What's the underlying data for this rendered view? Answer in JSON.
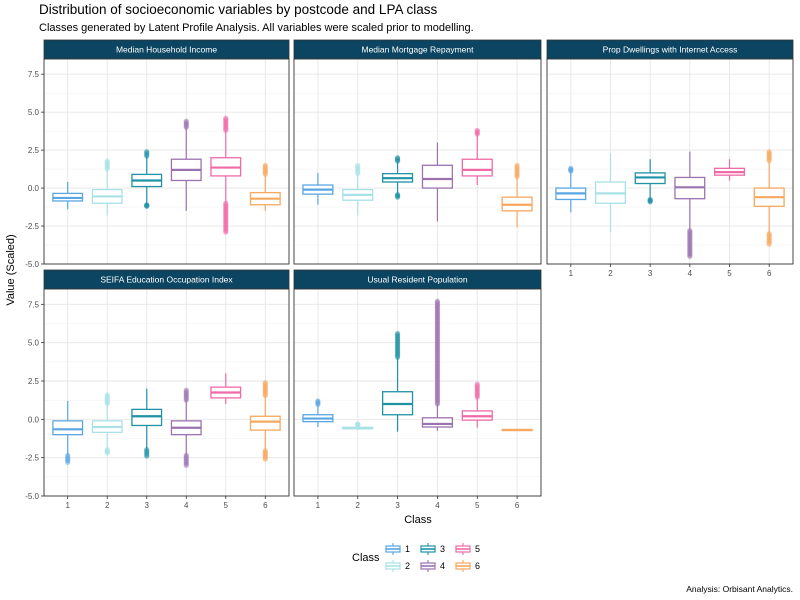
{
  "chart_data": {
    "type": "boxplot",
    "title": "Distribution of socioeconomic variables by postcode and LPA class",
    "subtitle": "Classes generated by Latent Profile Analysis. All variables were scaled prior to modelling.",
    "xlabel": "Class",
    "ylabel": "Value (Scaled)",
    "caption": "Analysis: Orbisant Analytics.",
    "categories": [
      "1",
      "2",
      "3",
      "4",
      "5",
      "6"
    ],
    "ylim": [
      -5,
      8.5
    ],
    "yticks": [
      -5.0,
      -2.5,
      0.0,
      2.5,
      5.0,
      7.5
    ],
    "ytick_labels": [
      "-5.0",
      "-2.5",
      "0.0",
      "2.5",
      "5.0",
      "7.5"
    ],
    "grid": true,
    "facet_layout": "3 columns x 2 rows, free y range not used",
    "legend": {
      "title": "Class",
      "position": "bottom",
      "entries": [
        "1",
        "2",
        "3",
        "4",
        "5",
        "6"
      ]
    },
    "colors": [
      "#5aa6e3",
      "#a8e2e6",
      "#1f92a6",
      "#9b72b0",
      "#f06aa8",
      "#f7a75e"
    ],
    "strip_color": "#0b4561",
    "panels": [
      {
        "name": "Median Household Income",
        "boxes": [
          {
            "class": "1",
            "min": -1.4,
            "q1": -0.85,
            "median": -0.65,
            "q3": -0.35,
            "max": 0.4
          },
          {
            "class": "2",
            "min": -1.8,
            "q1": -1.0,
            "median": -0.55,
            "q3": -0.1,
            "max": 1.8
          },
          {
            "class": "3",
            "min": -1.2,
            "q1": 0.1,
            "median": 0.5,
            "q3": 0.9,
            "max": 2.4
          },
          {
            "class": "4",
            "min": -1.5,
            "q1": 0.5,
            "median": 1.2,
            "q3": 1.9,
            "max": 4.4
          },
          {
            "class": "5",
            "min": -2.9,
            "q1": 0.8,
            "median": 1.35,
            "q3": 2.0,
            "max": 4.6
          },
          {
            "class": "6",
            "min": -1.5,
            "q1": -1.1,
            "median": -0.7,
            "q3": -0.3,
            "max": 1.5
          }
        ]
      },
      {
        "name": "Median Mortgage Repayment",
        "boxes": [
          {
            "class": "1",
            "min": -1.1,
            "q1": -0.4,
            "median": -0.1,
            "q3": 0.2,
            "max": 1.0
          },
          {
            "class": "2",
            "min": -1.8,
            "q1": -0.8,
            "median": -0.45,
            "q3": -0.1,
            "max": 1.5
          },
          {
            "class": "3",
            "min": -0.6,
            "q1": 0.4,
            "median": 0.65,
            "q3": 0.95,
            "max": 2.0
          },
          {
            "class": "4",
            "min": -2.2,
            "q1": 0.0,
            "median": 0.6,
            "q3": 1.5,
            "max": 3.0
          },
          {
            "class": "5",
            "min": 0.2,
            "q1": 0.8,
            "median": 1.2,
            "q3": 1.9,
            "max": 3.8
          },
          {
            "class": "6",
            "min": -2.6,
            "q1": -1.5,
            "median": -1.1,
            "q3": -0.6,
            "max": 1.5
          }
        ]
      },
      {
        "name": "Prop Dwellings with Internet Access",
        "boxes": [
          {
            "class": "1",
            "min": -1.6,
            "q1": -0.75,
            "median": -0.35,
            "q3": 0.0,
            "max": 1.3
          },
          {
            "class": "2",
            "min": -2.9,
            "q1": -1.0,
            "median": -0.35,
            "q3": 0.4,
            "max": 2.3
          },
          {
            "class": "3",
            "min": -0.9,
            "q1": 0.3,
            "median": 0.7,
            "q3": 1.0,
            "max": 1.9
          },
          {
            "class": "4",
            "min": -4.5,
            "q1": -0.7,
            "median": 0.05,
            "q3": 0.7,
            "max": 2.4
          },
          {
            "class": "5",
            "min": 0.5,
            "q1": 0.85,
            "median": 1.05,
            "q3": 1.3,
            "max": 1.9
          },
          {
            "class": "6",
            "min": -3.7,
            "q1": -1.2,
            "median": -0.6,
            "q3": 0.0,
            "max": 2.4
          }
        ]
      },
      {
        "name": "SEIFA Education Occupation Index",
        "boxes": [
          {
            "class": "1",
            "min": -2.8,
            "q1": -1.0,
            "median": -0.65,
            "q3": -0.1,
            "max": 1.2
          },
          {
            "class": "2",
            "min": -2.2,
            "q1": -0.85,
            "median": -0.5,
            "q3": -0.1,
            "max": 1.6
          },
          {
            "class": "3",
            "min": -2.4,
            "q1": -0.4,
            "median": 0.2,
            "q3": 0.65,
            "max": 2.0
          },
          {
            "class": "4",
            "min": -3.0,
            "q1": -1.0,
            "median": -0.55,
            "q3": -0.1,
            "max": 1.9
          },
          {
            "class": "5",
            "min": 1.0,
            "q1": 1.4,
            "median": 1.75,
            "q3": 2.1,
            "max": 3.0
          },
          {
            "class": "6",
            "min": -2.6,
            "q1": -0.7,
            "median": -0.15,
            "q3": 0.2,
            "max": 2.4
          }
        ]
      },
      {
        "name": "Usual Resident Population",
        "boxes": [
          {
            "class": "1",
            "min": -0.5,
            "q1": -0.15,
            "median": 0.05,
            "q3": 0.3,
            "max": 1.2
          },
          {
            "class": "2",
            "min": -0.7,
            "q1": -0.62,
            "median": -0.58,
            "q3": -0.52,
            "max": -0.3
          },
          {
            "class": "3",
            "min": -0.8,
            "q1": 0.3,
            "median": 1.0,
            "q3": 1.8,
            "max": 5.6
          },
          {
            "class": "4",
            "min": -0.75,
            "q1": -0.5,
            "median": -0.3,
            "q3": 0.1,
            "max": 7.7
          },
          {
            "class": "5",
            "min": -0.55,
            "q1": -0.05,
            "median": 0.2,
            "q3": 0.55,
            "max": 2.3
          },
          {
            "class": "6",
            "min": -0.75,
            "q1": -0.72,
            "median": -0.7,
            "q3": -0.66,
            "max": -0.6
          }
        ]
      }
    ]
  }
}
